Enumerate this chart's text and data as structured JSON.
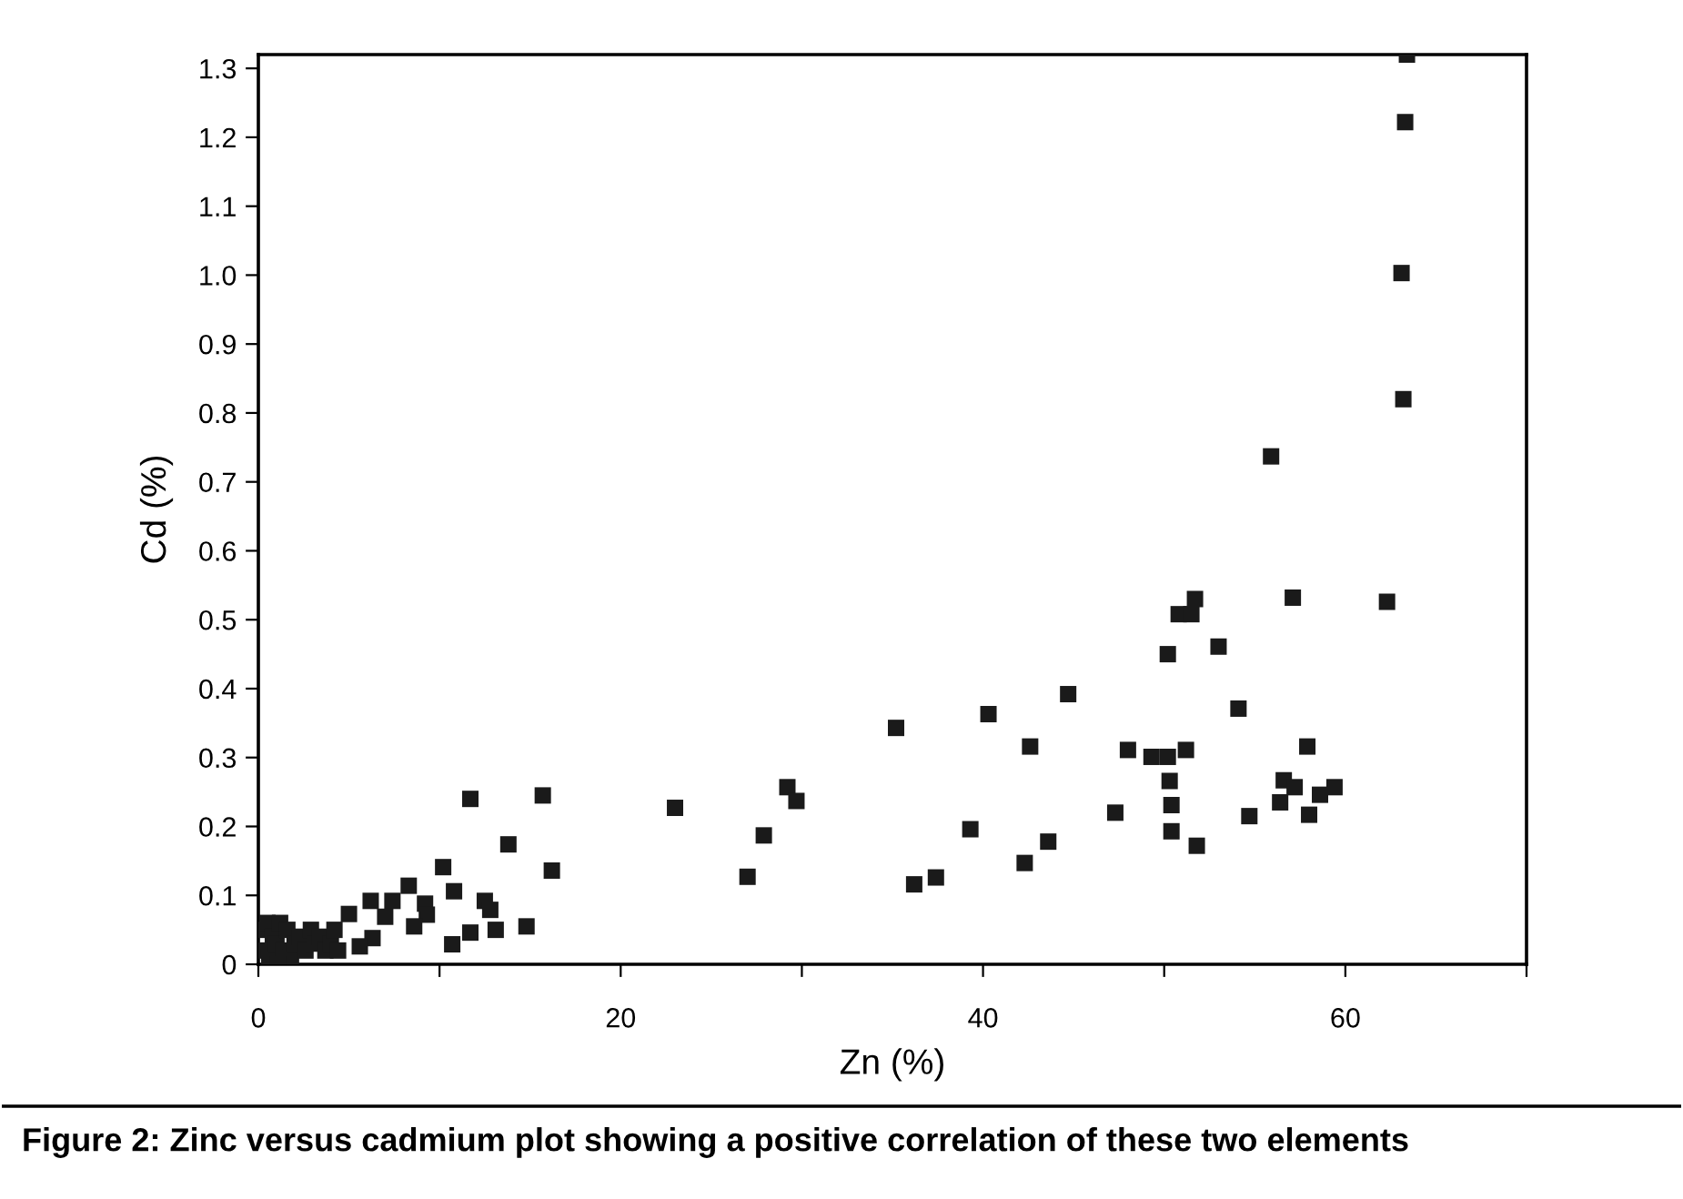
{
  "chart_data": {
    "type": "scatter",
    "xlabel": "Zn (%)",
    "ylabel": "Cd (%)",
    "annotations": [
      "Figure 2: Zinc versus cadmium plot showing a positive correlation of these two elements"
    ],
    "marker": "square",
    "grid": false,
    "legend": false,
    "xlim": [
      0,
      70
    ],
    "ylim": [
      0,
      1.32
    ],
    "xticks": [
      0,
      {
        "value": 10,
        "label": null
      },
      20,
      {
        "value": 30,
        "label": null
      },
      40,
      {
        "value": 50,
        "label": null
      },
      60,
      {
        "value": 70,
        "label": null
      }
    ],
    "yticks": [
      0,
      0.1,
      0.2,
      0.3,
      0.4,
      0.5,
      0.6,
      0.7,
      0.8,
      0.9,
      {
        "value": 1,
        "label": "1.0"
      },
      1.1,
      1.2,
      1.3
    ],
    "series": [
      {
        "color": "#1a1a1a",
        "x": [
          0.2,
          0.3,
          0.5,
          0.6,
          0.8,
          1.0,
          1.2,
          1.4,
          1.6,
          1.8,
          2.0,
          2.3,
          2.6,
          2.9,
          3.1,
          3.4,
          3.7,
          4.0,
          4.2,
          4.4,
          1.1,
          11.7,
          15.7,
          23.0,
          13.8,
          16.2,
          10.2,
          10.8,
          8.3,
          9.2,
          9.3,
          7.4,
          6.2,
          7.0,
          5.0,
          8.6,
          6.3,
          5.6,
          10.7,
          11.7,
          12.5,
          12.8,
          13.1,
          14.8,
          27.0,
          27.9,
          29.2,
          29.7,
          35.2,
          36.2,
          37.4,
          39.3,
          40.3,
          42.3,
          42.6,
          43.6,
          44.7,
          47.3,
          48.0,
          63.4,
          63.3,
          63.1,
          63.2,
          55.9,
          51.7,
          50.8,
          51.5,
          57.1,
          62.3,
          50.2,
          53.0,
          54.1,
          49.3,
          50.2,
          51.2,
          57.9,
          50.3,
          56.6,
          57.2,
          59.4,
          58.6,
          56.4,
          50.4,
          54.7,
          58.0,
          50.4,
          51.8
        ],
        "values": [
          0.05,
          0.02,
          0.06,
          0.01,
          0.04,
          0.03,
          0.06,
          0.02,
          0.05,
          0.01,
          0.03,
          0.04,
          0.02,
          0.05,
          0.03,
          0.04,
          0.02,
          0.03,
          0.05,
          0.02,
          0.0,
          0.24,
          0.245,
          0.227,
          0.174,
          0.136,
          0.141,
          0.106,
          0.114,
          0.088,
          0.072,
          0.092,
          0.092,
          0.069,
          0.073,
          0.055,
          0.038,
          0.026,
          0.029,
          0.046,
          0.092,
          0.079,
          0.05,
          0.055,
          0.127,
          0.187,
          0.257,
          0.237,
          0.343,
          0.116,
          0.126,
          0.196,
          0.363,
          0.147,
          0.316,
          0.178,
          0.392,
          0.22,
          0.311,
          1.32,
          1.222,
          1.003,
          0.82,
          0.737,
          0.53,
          0.508,
          0.508,
          0.532,
          0.526,
          0.45,
          0.461,
          0.371,
          0.301,
          0.301,
          0.311,
          0.316,
          0.266,
          0.267,
          0.257,
          0.257,
          0.246,
          0.235,
          0.231,
          0.215,
          0.217,
          0.193,
          0.172
        ]
      }
    ]
  }
}
